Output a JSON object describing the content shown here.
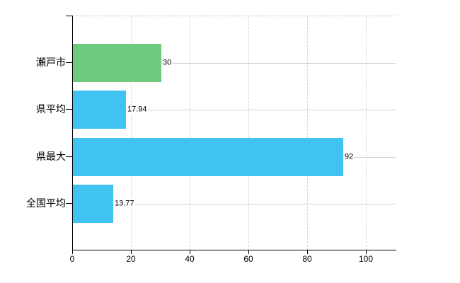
{
  "chart_data": {
    "type": "bar",
    "orientation": "horizontal",
    "title": "",
    "xlabel": "",
    "ylabel": "",
    "categories": [
      "瀬戸市",
      "県平均",
      "県最大",
      "全国平均"
    ],
    "values": [
      30,
      17.94,
      92,
      13.77
    ],
    "value_labels": [
      "30",
      "17.94",
      "92",
      "13.77"
    ],
    "series": [
      {
        "name": "",
        "values": [
          30,
          17.94,
          92,
          13.77
        ],
        "colors": [
          "#6ecb7e",
          "#41c3f2",
          "#41c3f2",
          "#41c3f2"
        ]
      }
    ],
    "x_ticks": [
      0,
      20,
      40,
      60,
      80,
      100
    ],
    "x_tick_labels": [
      "0",
      "20",
      "40",
      "60",
      "80",
      "100"
    ],
    "xlim": [
      0,
      110
    ],
    "grid": true,
    "legend": false
  },
  "colors": {
    "bar_green": "#6ecb7e",
    "bar_blue": "#41c3f2",
    "axis": "#000000",
    "grid_vertical": "#d9d6db",
    "grid_horizontal": "#ccd3cc",
    "plot_top_border": "#c8c8cc",
    "text": "#000000",
    "background": "#ffffff"
  }
}
